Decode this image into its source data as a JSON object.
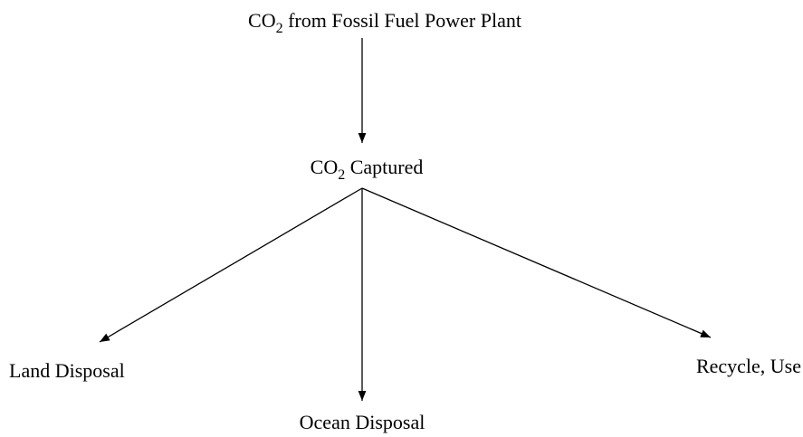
{
  "nodes": [
    {
      "formula": {
        "base": "CO",
        "sub": "2"
      },
      "text": "from Fossil Fuel Power Plant"
    },
    {
      "formula": {
        "base": "CO",
        "sub": "2"
      },
      "text": "Captured"
    },
    {
      "text": "Land Disposal"
    },
    {
      "text": "Ocean Disposal"
    },
    {
      "text": "Recycle, Use"
    }
  ]
}
